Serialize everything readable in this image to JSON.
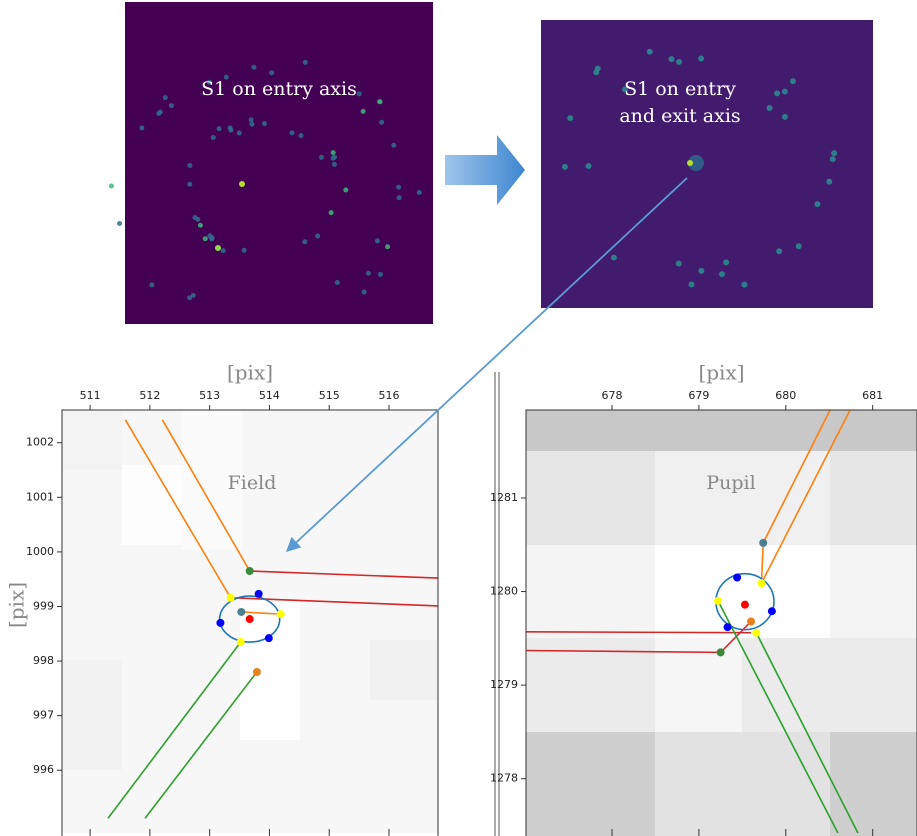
{
  "images": [
    {
      "caption": [
        "S1 on entry axis"
      ]
    },
    {
      "caption": [
        "S1 on entry",
        "and exit axis"
      ]
    }
  ],
  "chart_data": [
    {
      "type": "scatter",
      "xlabel": "[pix]",
      "ylabel": "[pix]",
      "annotation": "Field",
      "xlim": [
        510.53,
        516.82
      ],
      "ylim": [
        994.85,
        1002.6
      ],
      "xticks": [
        511,
        512,
        513,
        514,
        515,
        516
      ],
      "yticks": [
        996,
        997,
        998,
        999,
        1000,
        1001,
        1002
      ],
      "lines": [
        {
          "color": "#ff7f0e",
          "x": [
            511.59,
            513.35
          ],
          "y": [
            1002.42,
            999.16
          ]
        },
        {
          "color": "#ff7f0e",
          "x": [
            512.21,
            513.67
          ],
          "y": [
            1002.42,
            999.65
          ]
        },
        {
          "color": "#ff7f0e",
          "x": [
            513.53,
            514.19
          ],
          "y": [
            998.9,
            998.86
          ]
        },
        {
          "color": "#d62728",
          "x": [
            513.67,
            516.82
          ],
          "y": [
            999.65,
            999.52
          ]
        },
        {
          "color": "#d62728",
          "x": [
            513.35,
            516.82
          ],
          "y": [
            999.16,
            999.01
          ]
        },
        {
          "color": "#2ca02c",
          "x": [
            513.52,
            511.3
          ],
          "y": [
            998.35,
            995.12
          ]
        },
        {
          "color": "#2ca02c",
          "x": [
            513.79,
            511.92
          ],
          "y": [
            997.8,
            995.12
          ]
        }
      ],
      "points": [
        {
          "color": "#3a8a3a",
          "x": [
            513.67
          ],
          "y": [
            999.65
          ]
        },
        {
          "color": "#0000ff",
          "x": [
            513.82,
            513.18,
            513.99
          ],
          "y": [
            999.23,
            998.7,
            998.42
          ]
        },
        {
          "color": "#4a7f8f",
          "x": [
            513.53
          ],
          "y": [
            998.9
          ]
        },
        {
          "color": "#ff0000",
          "x": [
            513.67
          ],
          "y": [
            998.77
          ]
        },
        {
          "color": "#ffff00",
          "x": [
            514.19,
            513.52,
            513.35
          ],
          "y": [
            998.86,
            998.35,
            999.16
          ]
        },
        {
          "color": "#e8821e",
          "x": [
            513.79
          ],
          "y": [
            997.8
          ]
        }
      ]
    },
    {
      "type": "scatter",
      "xlabel": "[pix]",
      "annotation": "Pupil",
      "xlim": [
        677.01,
        681.51
      ],
      "ylim": [
        1277.42,
        1281.94
      ],
      "xticks": [
        678,
        679,
        680,
        681
      ],
      "yticks": [
        1278,
        1279,
        1280,
        1281
      ],
      "lines": [
        {
          "color": "#ff7f0e",
          "x": [
            679.74,
            680.51
          ],
          "y": [
            1280.52,
            1281.94
          ]
        },
        {
          "color": "#ff7f0e",
          "x": [
            679.72,
            680.74
          ],
          "y": [
            1280.09,
            1281.94
          ]
        },
        {
          "color": "#ff7f0e",
          "x": [
            679.74,
            679.72
          ],
          "y": [
            1280.52,
            1280.09
          ]
        },
        {
          "color": "#d62728",
          "x": [
            677.01,
            679.6
          ],
          "y": [
            1279.57,
            1279.56
          ]
        },
        {
          "color": "#d62728",
          "x": [
            677.01,
            679.25,
            679.6
          ],
          "y": [
            1279.37,
            1279.35,
            1279.68
          ]
        },
        {
          "color": "#2ca02c",
          "x": [
            679.22,
            680.6
          ],
          "y": [
            1279.9,
            1277.42
          ]
        },
        {
          "color": "#2ca02c",
          "x": [
            679.66,
            680.83
          ],
          "y": [
            1279.56,
            1277.42
          ]
        }
      ],
      "points": [
        {
          "color": "#4a7f8f",
          "x": [
            679.74
          ],
          "y": [
            1280.52
          ]
        },
        {
          "color": "#0000ff",
          "x": [
            679.44,
            679.84,
            679.33
          ],
          "y": [
            1280.15,
            1279.79,
            1279.62
          ]
        },
        {
          "color": "#ffff00",
          "x": [
            679.72,
            679.22,
            679.66
          ],
          "y": [
            1280.09,
            1279.9,
            1279.56
          ]
        },
        {
          "color": "#ff0000",
          "x": [
            679.53
          ],
          "y": [
            1279.86
          ]
        },
        {
          "color": "#e8821e",
          "x": [
            679.6
          ],
          "y": [
            1279.68
          ]
        },
        {
          "color": "#3a8a3a",
          "x": [
            679.25
          ],
          "y": [
            1279.35
          ]
        }
      ]
    }
  ]
}
